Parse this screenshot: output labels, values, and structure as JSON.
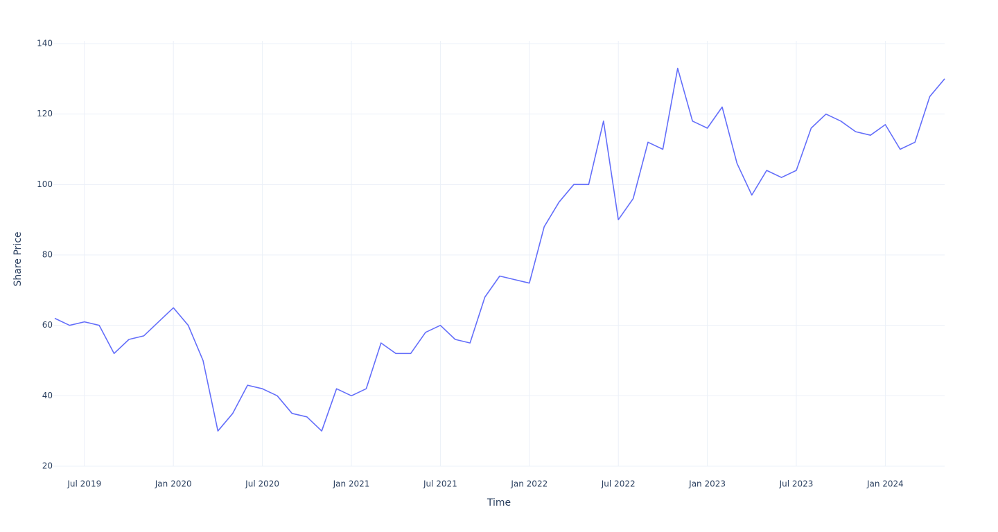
{
  "chart_data": {
    "type": "line",
    "x_label": "Time",
    "y_label": "Share Price",
    "x": [
      "2019-05",
      "2019-06",
      "2019-07",
      "2019-08",
      "2019-09",
      "2019-10",
      "2019-11",
      "2019-12",
      "2020-01",
      "2020-02",
      "2020-03",
      "2020-04",
      "2020-05",
      "2020-06",
      "2020-07",
      "2020-08",
      "2020-09",
      "2020-10",
      "2020-11",
      "2020-12",
      "2021-01",
      "2021-02",
      "2021-03",
      "2021-04",
      "2021-05",
      "2021-06",
      "2021-07",
      "2021-08",
      "2021-09",
      "2021-10",
      "2021-11",
      "2021-12",
      "2022-01",
      "2022-02",
      "2022-03",
      "2022-04",
      "2022-05",
      "2022-06",
      "2022-07",
      "2022-08",
      "2022-09",
      "2022-10",
      "2022-11",
      "2022-12",
      "2023-01",
      "2023-02",
      "2023-03",
      "2023-04",
      "2023-05",
      "2023-06",
      "2023-07",
      "2023-08",
      "2023-09",
      "2023-10",
      "2023-11",
      "2023-12",
      "2024-01",
      "2024-02",
      "2024-03",
      "2024-04",
      "2024-05"
    ],
    "series": [
      {
        "name": "Share Price",
        "color": "#636efa",
        "values": [
          62,
          60,
          61,
          60,
          52,
          56,
          57,
          61,
          65,
          60,
          50,
          30,
          35,
          43,
          42,
          40,
          35,
          34,
          30,
          42,
          40,
          42,
          55,
          52,
          52,
          58,
          60,
          56,
          55,
          68,
          74,
          73,
          72,
          88,
          95,
          100,
          100,
          118,
          90,
          96,
          112,
          110,
          133,
          118,
          116,
          122,
          106,
          97,
          104,
          102,
          104,
          116,
          120,
          118,
          115,
          114,
          117,
          110,
          112,
          125,
          130
        ]
      }
    ],
    "xlim": [
      "2019-05",
      "2024-05"
    ],
    "xticks": [
      {
        "value": "2019-07",
        "label": "Jul 2019"
      },
      {
        "value": "2020-01",
        "label": "Jan 2020"
      },
      {
        "value": "2020-07",
        "label": "Jul 2020"
      },
      {
        "value": "2021-01",
        "label": "Jan 2021"
      },
      {
        "value": "2021-07",
        "label": "Jul 2021"
      },
      {
        "value": "2022-01",
        "label": "Jan 2022"
      },
      {
        "value": "2022-07",
        "label": "Jul 2022"
      },
      {
        "value": "2023-01",
        "label": "Jan 2023"
      },
      {
        "value": "2023-07",
        "label": "Jul 2023"
      },
      {
        "value": "2024-01",
        "label": "Jan 2024"
      }
    ],
    "ylim": [
      20,
      140
    ],
    "yticks": [
      20,
      40,
      60,
      80,
      100,
      120,
      140
    ],
    "grid": true
  }
}
